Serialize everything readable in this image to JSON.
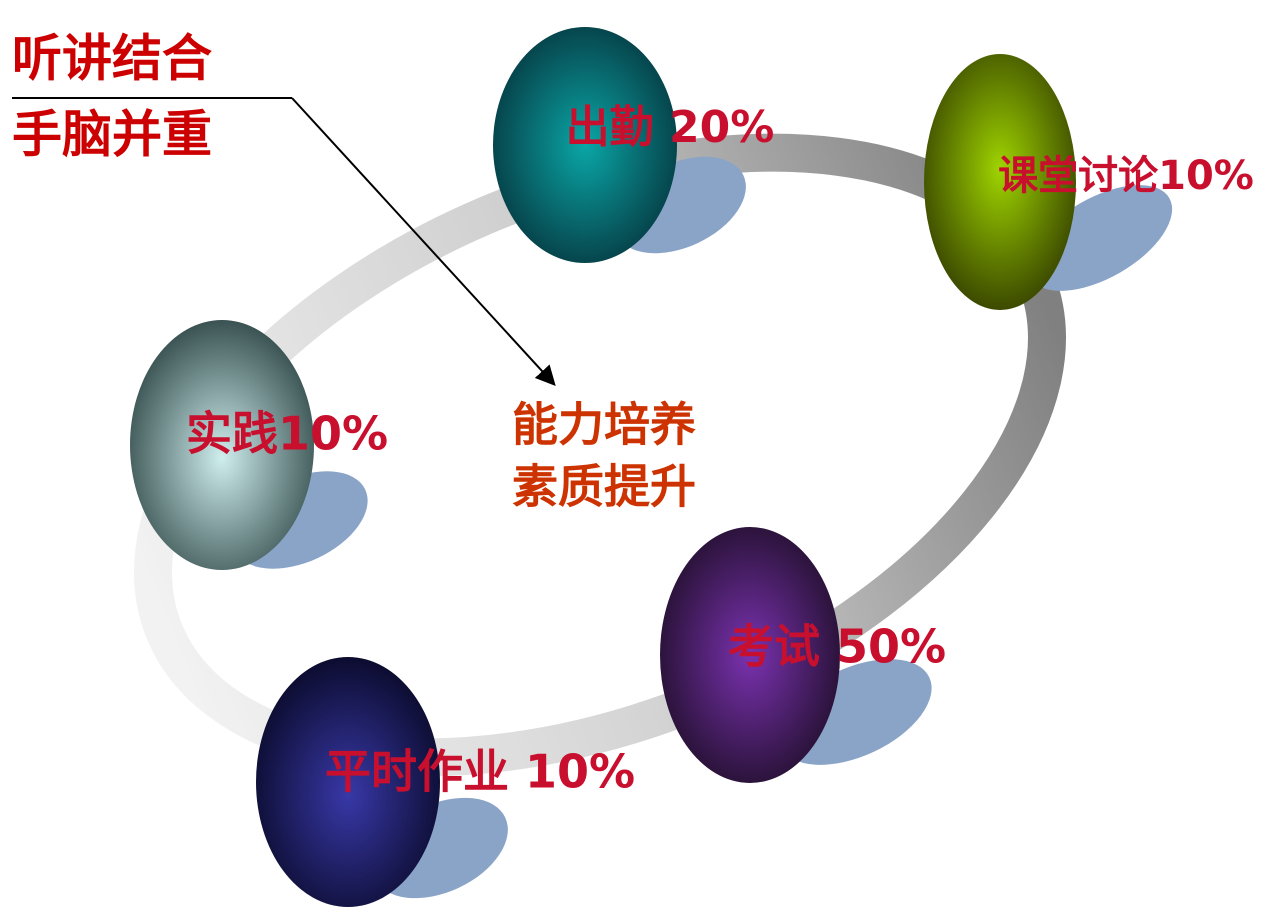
{
  "title": {
    "lines": [
      "听讲结合",
      "手脑并重"
    ]
  },
  "center": {
    "lines": [
      "能力培养",
      "素质提升"
    ]
  },
  "nodes": [
    {
      "label": "出勤 20%"
    },
    {
      "label": "课堂讨论10%"
    },
    {
      "label": "实践10%"
    },
    {
      "label": "考试 50%"
    },
    {
      "label": "平时作业 10%"
    }
  ]
}
